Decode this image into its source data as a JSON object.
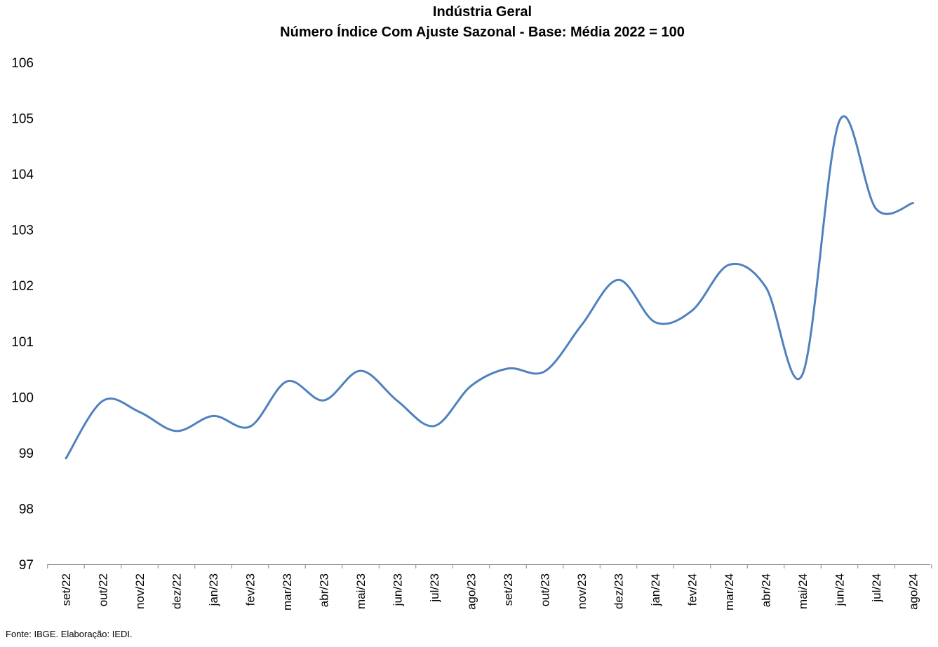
{
  "chart_data": {
    "type": "line",
    "title": "Indústria Geral",
    "subtitle": "Número Índice Com Ajuste Sazonal - Base: Média 2022 = 100",
    "categories": [
      "set/22",
      "out/22",
      "nov/22",
      "dez/22",
      "jan/23",
      "fev/23",
      "mar/23",
      "abr/23",
      "mai/23",
      "jun/23",
      "jul/23",
      "ago/23",
      "set/23",
      "out/23",
      "nov/23",
      "dez/23",
      "jan/24",
      "fev/24",
      "mar/24",
      "abr/24",
      "mai/24",
      "jun/24",
      "jul/24",
      "ago/24"
    ],
    "series": [
      {
        "values": [
          98.9,
          99.93,
          99.73,
          99.39,
          99.66,
          99.47,
          100.28,
          99.94,
          100.47,
          99.93,
          99.48,
          100.2,
          100.51,
          100.46,
          101.29,
          102.1,
          101.34,
          101.55,
          102.37,
          101.97,
          100.41,
          104.95,
          103.37,
          103.48
        ],
        "color": "#4F81BD"
      }
    ],
    "ylim": [
      97,
      106
    ],
    "yticks": [
      97,
      98,
      99,
      100,
      101,
      102,
      103,
      104,
      105,
      106
    ],
    "grid": false,
    "xlabel": "",
    "ylabel": ""
  },
  "footer": {
    "source": "Fonte: IBGE. Elaboração: IEDI."
  }
}
